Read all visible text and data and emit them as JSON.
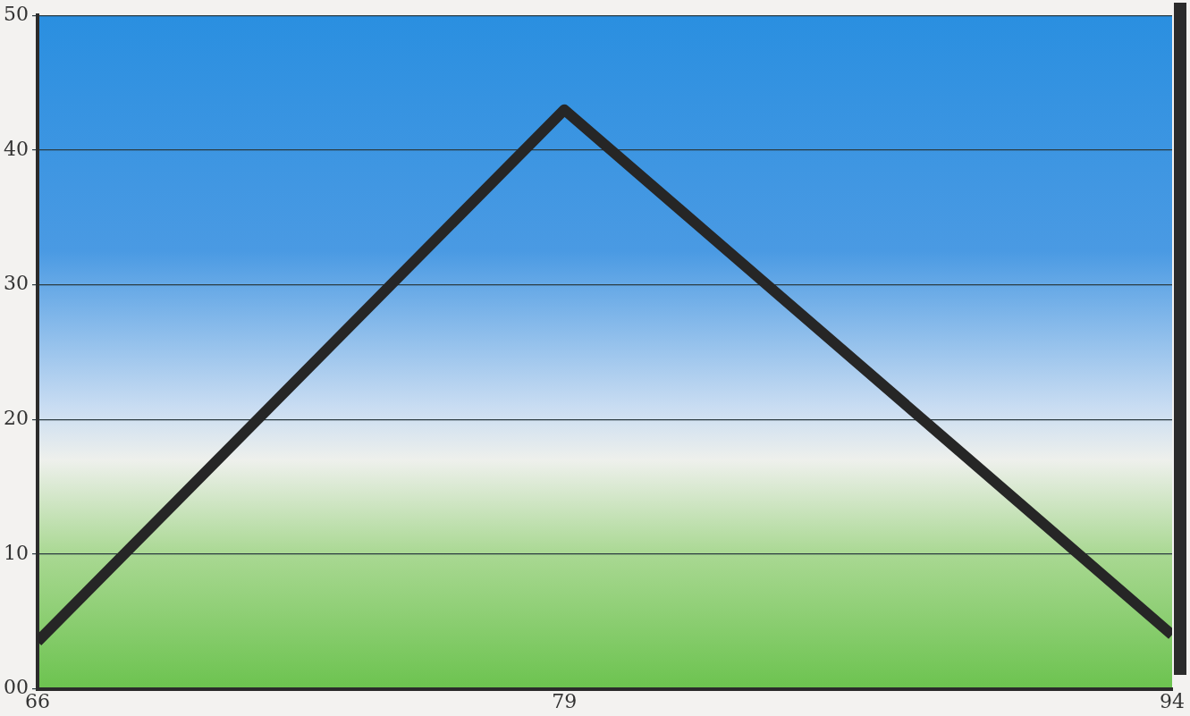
{
  "chart_data": {
    "type": "line",
    "x": [
      66,
      79,
      94
    ],
    "series": [
      {
        "color": "#262626",
        "values": [
          3.5,
          43,
          4
        ]
      }
    ],
    "xlim": [
      66,
      94
    ],
    "xticks": [
      66,
      79,
      94
    ],
    "ylim": [
      0,
      50
    ],
    "yticks": [
      {
        "value": 0,
        "label": "00"
      },
      10,
      20,
      30,
      40,
      50
    ],
    "grid": "y",
    "legend": false,
    "marker": "none",
    "line_style": "solid"
  }
}
